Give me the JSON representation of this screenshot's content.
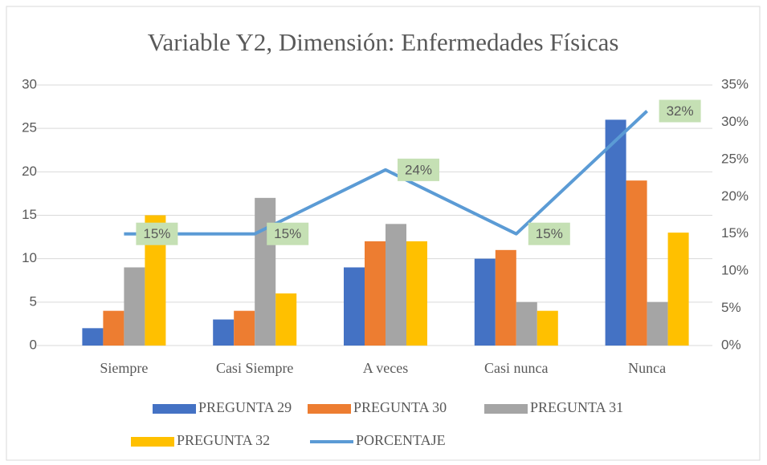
{
  "chart_data": {
    "type": "bar-line",
    "title": "Variable Y2, Dimensión: Enfermedades Físicas",
    "categories": [
      "Siempre",
      "Casi Siempre",
      "A veces",
      "Casi nunca",
      "Nunca"
    ],
    "series": [
      {
        "name": "PREGUNTA 29",
        "type": "bar",
        "color": "#4472c4",
        "values": [
          2,
          3,
          9,
          10,
          26
        ]
      },
      {
        "name": "PREGUNTA 30",
        "type": "bar",
        "color": "#ed7d31",
        "values": [
          4,
          4,
          12,
          11,
          19
        ]
      },
      {
        "name": "PREGUNTA 31",
        "type": "bar",
        "color": "#a5a5a5",
        "values": [
          9,
          17,
          14,
          5,
          5
        ]
      },
      {
        "name": "PREGUNTA 32",
        "type": "bar",
        "color": "#ffc000",
        "values": [
          15,
          6,
          12,
          4,
          13
        ]
      },
      {
        "name": "PORCENTAJE",
        "type": "line",
        "axis": "y2",
        "color": "#5b9bd5",
        "values": [
          15,
          15,
          23.6,
          15,
          31.5
        ],
        "value_labels": [
          "15%",
          "15%",
          "24%",
          "15%",
          "32%"
        ]
      }
    ],
    "ylim": [
      0,
      30
    ],
    "yticks": [
      0,
      5,
      10,
      15,
      20,
      25,
      30
    ],
    "y2lim": [
      0,
      35
    ],
    "y2ticks": [
      {
        "value": 0,
        "label": "0%"
      },
      {
        "value": 5,
        "label": "5%"
      },
      {
        "value": 10,
        "label": "10%"
      },
      {
        "value": 15,
        "label": "15%"
      },
      {
        "value": 20,
        "label": "20%"
      },
      {
        "value": 25,
        "label": "25%"
      },
      {
        "value": 30,
        "label": "30%"
      },
      {
        "value": 35,
        "label": "35%"
      }
    ],
    "grid": true,
    "legend": "bottom"
  }
}
